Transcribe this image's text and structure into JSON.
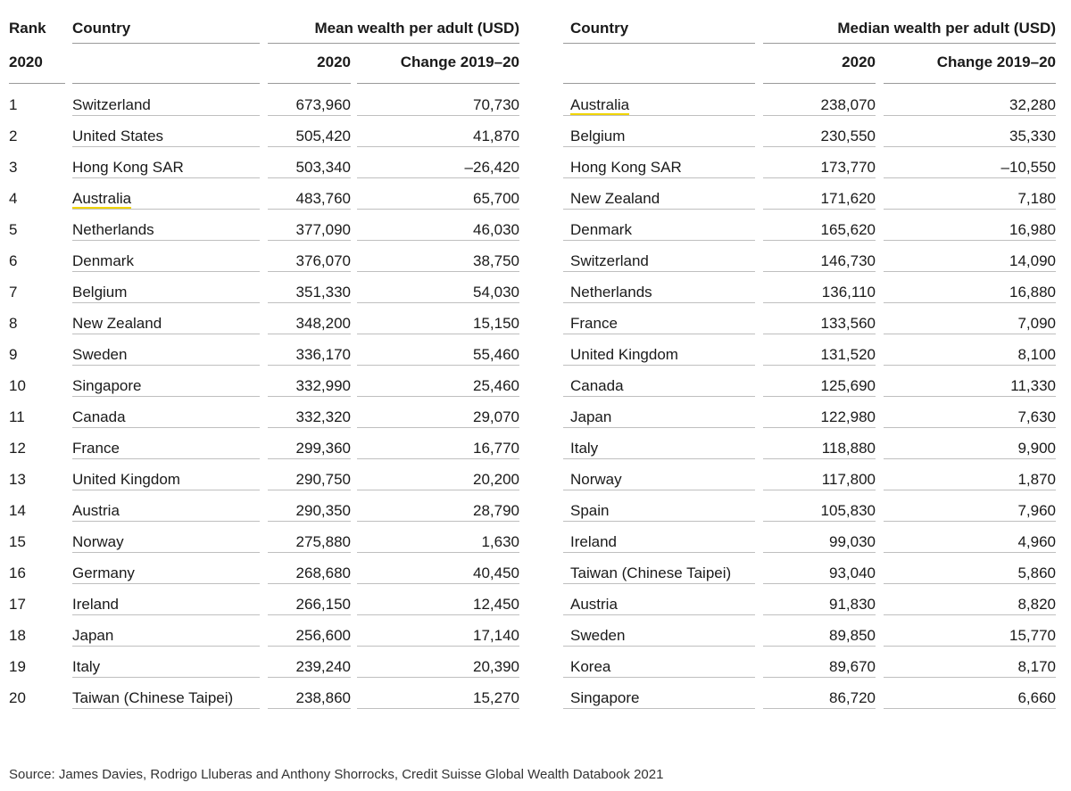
{
  "headers": {
    "rank": "Rank",
    "country_left": "Country",
    "mean_title": "Mean wealth per adult (USD)",
    "country_right": "Country",
    "median_title": "Median wealth per adult (USD)",
    "rank_year": "2020",
    "mean_year": "2020",
    "mean_change": "Change 2019–20",
    "median_year": "2020",
    "median_change": "Change 2019–20"
  },
  "rows": [
    {
      "rank": "1",
      "mean_country": "Switzerland",
      "mean_value": "673,960",
      "mean_change": "70,730",
      "median_country": "Australia",
      "median_value": "238,070",
      "median_change": "32,280"
    },
    {
      "rank": "2",
      "mean_country": "United States",
      "mean_value": "505,420",
      "mean_change": "41,870",
      "median_country": "Belgium",
      "median_value": "230,550",
      "median_change": "35,330"
    },
    {
      "rank": "3",
      "mean_country": "Hong Kong SAR",
      "mean_value": "503,340",
      "mean_change": "–26,420",
      "median_country": "Hong Kong SAR",
      "median_value": "173,770",
      "median_change": "–10,550"
    },
    {
      "rank": "4",
      "mean_country": "Australia",
      "mean_value": "483,760",
      "mean_change": "65,700",
      "median_country": "New Zealand",
      "median_value": "171,620",
      "median_change": "7,180"
    },
    {
      "rank": "5",
      "mean_country": "Netherlands",
      "mean_value": "377,090",
      "mean_change": "46,030",
      "median_country": "Denmark",
      "median_value": "165,620",
      "median_change": "16,980"
    },
    {
      "rank": "6",
      "mean_country": "Denmark",
      "mean_value": "376,070",
      "mean_change": "38,750",
      "median_country": "Switzerland",
      "median_value": "146,730",
      "median_change": "14,090"
    },
    {
      "rank": "7",
      "mean_country": "Belgium",
      "mean_value": "351,330",
      "mean_change": "54,030",
      "median_country": "Netherlands",
      "median_value": "136,110",
      "median_change": "16,880"
    },
    {
      "rank": "8",
      "mean_country": "New Zealand",
      "mean_value": "348,200",
      "mean_change": "15,150",
      "median_country": "France",
      "median_value": "133,560",
      "median_change": "7,090"
    },
    {
      "rank": "9",
      "mean_country": "Sweden",
      "mean_value": "336,170",
      "mean_change": "55,460",
      "median_country": "United Kingdom",
      "median_value": "131,520",
      "median_change": "8,100"
    },
    {
      "rank": "10",
      "mean_country": "Singapore",
      "mean_value": "332,990",
      "mean_change": "25,460",
      "median_country": "Canada",
      "median_value": "125,690",
      "median_change": "11,330"
    },
    {
      "rank": "11",
      "mean_country": "Canada",
      "mean_value": "332,320",
      "mean_change": "29,070",
      "median_country": "Japan",
      "median_value": "122,980",
      "median_change": "7,630"
    },
    {
      "rank": "12",
      "mean_country": "France",
      "mean_value": "299,360",
      "mean_change": "16,770",
      "median_country": "Italy",
      "median_value": "118,880",
      "median_change": "9,900"
    },
    {
      "rank": "13",
      "mean_country": "United Kingdom",
      "mean_value": "290,750",
      "mean_change": "20,200",
      "median_country": "Norway",
      "median_value": "117,800",
      "median_change": "1,870"
    },
    {
      "rank": "14",
      "mean_country": "Austria",
      "mean_value": "290,350",
      "mean_change": "28,790",
      "median_country": "Spain",
      "median_value": "105,830",
      "median_change": "7,960"
    },
    {
      "rank": "15",
      "mean_country": "Norway",
      "mean_value": "275,880",
      "mean_change": "1,630",
      "median_country": "Ireland",
      "median_value": "99,030",
      "median_change": "4,960"
    },
    {
      "rank": "16",
      "mean_country": "Germany",
      "mean_value": "268,680",
      "mean_change": "40,450",
      "median_country": "Taiwan (Chinese Taipei)",
      "median_value": "93,040",
      "median_change": "5,860"
    },
    {
      "rank": "17",
      "mean_country": "Ireland",
      "mean_value": "266,150",
      "mean_change": "12,450",
      "median_country": "Austria",
      "median_value": "91,830",
      "median_change": "8,820"
    },
    {
      "rank": "18",
      "mean_country": "Japan",
      "mean_value": "256,600",
      "mean_change": "17,140",
      "median_country": "Sweden",
      "median_value": "89,850",
      "median_change": "15,770"
    },
    {
      "rank": "19",
      "mean_country": "Italy",
      "mean_value": "239,240",
      "mean_change": "20,390",
      "median_country": "Korea",
      "median_value": "89,670",
      "median_change": "8,170"
    },
    {
      "rank": "20",
      "mean_country": "Taiwan (Chinese Taipei)",
      "mean_value": "238,860",
      "mean_change": "15,270",
      "median_country": "Singapore",
      "median_value": "86,720",
      "median_change": "6,660"
    }
  ],
  "highlighted_country": "Australia",
  "highlight_color": "#f0d400",
  "source": "Source: James Davies, Rodrigo Lluberas and Anthony Shorrocks, Credit Suisse Global Wealth Databook 2021"
}
